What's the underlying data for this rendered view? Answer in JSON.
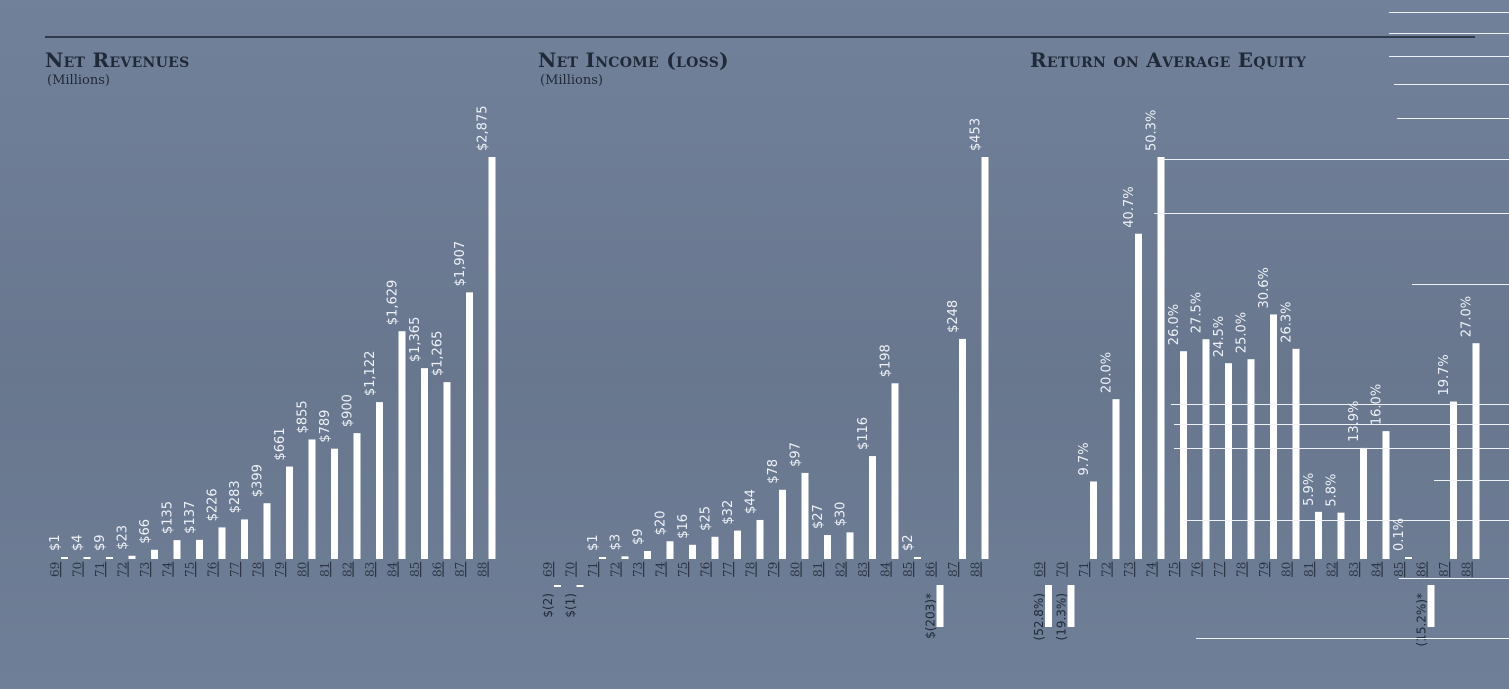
{
  "chart_data": [
    {
      "type": "bar",
      "title": "Net Revenues",
      "subtitle": "(Millions)",
      "categories": [
        "69",
        "70",
        "71",
        "72",
        "73",
        "74",
        "75",
        "76",
        "77",
        "78",
        "79",
        "80",
        "81",
        "82",
        "83",
        "84",
        "85",
        "86",
        "87",
        "88"
      ],
      "values": [
        1,
        4,
        9,
        23,
        66,
        135,
        137,
        226,
        283,
        399,
        661,
        855,
        789,
        900,
        1122,
        1629,
        1365,
        1265,
        1907,
        2875
      ],
      "value_labels": [
        "$1",
        "$4",
        "$9",
        "$23",
        "$66",
        "$135",
        "$137",
        "$226",
        "$283",
        "$399",
        "$661",
        "$855",
        "$789",
        "$900",
        "$1,122",
        "$1,629",
        "$1,365",
        "$1,265",
        "$1,907",
        "$2,875"
      ],
      "ylim": [
        0,
        2875
      ]
    },
    {
      "type": "bar",
      "title": "Net Income (loss)",
      "subtitle": "(Millions)",
      "categories": [
        "69",
        "70",
        "71",
        "72",
        "73",
        "74",
        "75",
        "76",
        "77",
        "78",
        "79",
        "80",
        "81",
        "82",
        "83",
        "84",
        "85",
        "86",
        "87",
        "88"
      ],
      "values": [
        -2,
        -1,
        1,
        3,
        9,
        20,
        16,
        25,
        32,
        44,
        78,
        97,
        27,
        30,
        116,
        198,
        2,
        -203,
        248,
        453
      ],
      "value_labels": [
        "$(2)",
        "$(1)",
        "$1",
        "$3",
        "$9",
        "$20",
        "$16",
        "$25",
        "$32",
        "$44",
        "$78",
        "$97",
        "$27",
        "$30",
        "$116",
        "$198",
        "$2",
        "$(203)*",
        "$248",
        "$453"
      ],
      "ylim": [
        -203,
        453
      ]
    },
    {
      "type": "bar",
      "title": "Return on Average Equity",
      "subtitle": "",
      "categories": [
        "69",
        "70",
        "71",
        "72",
        "73",
        "74",
        "75",
        "76",
        "77",
        "78",
        "79",
        "80",
        "81",
        "82",
        "83",
        "84",
        "85",
        "86",
        "87",
        "88"
      ],
      "values": [
        -52.8,
        -19.3,
        9.7,
        20.0,
        40.7,
        50.3,
        26.0,
        27.5,
        24.5,
        25.0,
        30.6,
        26.3,
        5.9,
        5.8,
        13.9,
        16.0,
        0.1,
        -15.2,
        19.7,
        27.0
      ],
      "value_labels": [
        "(52.8%)",
        "(19.3%)",
        "9.7%",
        "20.0%",
        "40.7%",
        "50.3%",
        "26.0%",
        "27.5%",
        "24.5%",
        "25.0%",
        "30.6%",
        "26.3%",
        "5.9%",
        "5.8%",
        "13.9%",
        "16.0%",
        "0.1%",
        "(15.2%)*",
        "19.7%",
        "27.0%"
      ],
      "ylim": [
        -15.2,
        50.3
      ]
    }
  ]
}
